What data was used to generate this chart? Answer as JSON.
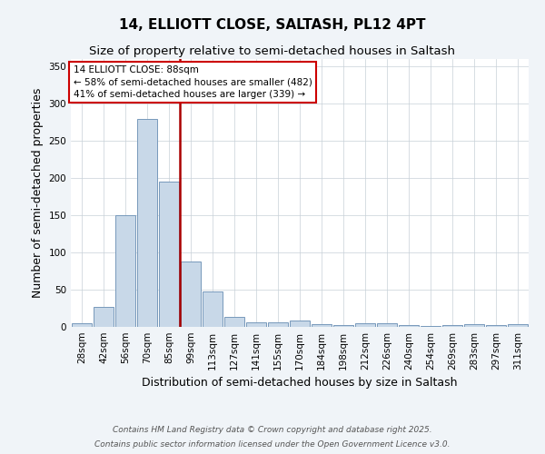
{
  "title": "14, ELLIOTT CLOSE, SALTASH, PL12 4PT",
  "subtitle": "Size of property relative to semi-detached houses in Saltash",
  "xlabel": "Distribution of semi-detached houses by size in Saltash",
  "ylabel": "Number of semi-detached properties",
  "categories": [
    "28sqm",
    "42sqm",
    "56sqm",
    "70sqm",
    "85sqm",
    "99sqm",
    "113sqm",
    "127sqm",
    "141sqm",
    "155sqm",
    "170sqm",
    "184sqm",
    "198sqm",
    "212sqm",
    "226sqm",
    "240sqm",
    "254sqm",
    "269sqm",
    "283sqm",
    "297sqm",
    "311sqm"
  ],
  "values": [
    5,
    27,
    150,
    280,
    195,
    88,
    48,
    13,
    6,
    6,
    8,
    4,
    3,
    5,
    5,
    2,
    1,
    3,
    4,
    2,
    4
  ],
  "bar_color": "#c8d8e8",
  "bar_edge_color": "#7799bb",
  "vline_x": 4.5,
  "vline_color": "#aa0000",
  "annotation_title": "14 ELLIOTT CLOSE: 88sqm",
  "annotation_line1": "← 58% of semi-detached houses are smaller (482)",
  "annotation_line2": "41% of semi-detached houses are larger (339) →",
  "annotation_box_color": "#cc0000",
  "ylim": [
    0,
    360
  ],
  "yticks": [
    0,
    50,
    100,
    150,
    200,
    250,
    300,
    350
  ],
  "footnote1": "Contains HM Land Registry data © Crown copyright and database right 2025.",
  "footnote2": "Contains public sector information licensed under the Open Government Licence v3.0.",
  "bg_color": "#f0f4f8",
  "plot_bg_color": "#ffffff",
  "grid_color": "#c8d0d8",
  "title_fontsize": 11,
  "subtitle_fontsize": 9.5,
  "axis_label_fontsize": 9,
  "tick_fontsize": 7.5,
  "annotation_fontsize": 7.5,
  "footnote_fontsize": 6.5
}
